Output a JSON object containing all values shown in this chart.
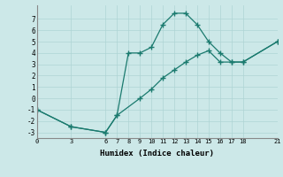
{
  "xlabel": "Humidex (Indice chaleur)",
  "bg_color": "#cce8e8",
  "line_color": "#1a7a6e",
  "line1_x": [
    0,
    3,
    6,
    7,
    8,
    9,
    10,
    11,
    12,
    13,
    14,
    15,
    16,
    17,
    18,
    21
  ],
  "line1_y": [
    -1,
    -2.5,
    -3,
    -1.5,
    4,
    4,
    4.5,
    6.5,
    7.5,
    7.5,
    6.5,
    5,
    4,
    3.2,
    3.2,
    5
  ],
  "line2_x": [
    0,
    3,
    6,
    7,
    9,
    10,
    11,
    12,
    13,
    14,
    15,
    16,
    17,
    18,
    21
  ],
  "line2_y": [
    -1,
    -2.5,
    -3,
    -1.5,
    0,
    0.8,
    1.8,
    2.5,
    3.2,
    3.8,
    4.2,
    3.2,
    3.2,
    3.2,
    5
  ],
  "xlim": [
    0,
    21
  ],
  "ylim": [
    -3.5,
    8.2
  ],
  "xticks": [
    0,
    3,
    6,
    7,
    8,
    9,
    10,
    11,
    12,
    13,
    14,
    15,
    16,
    17,
    18,
    21
  ],
  "yticks": [
    -3,
    -2,
    -1,
    0,
    1,
    2,
    3,
    4,
    5,
    6,
    7
  ],
  "grid_color": "#aed4d4",
  "marker": "+"
}
